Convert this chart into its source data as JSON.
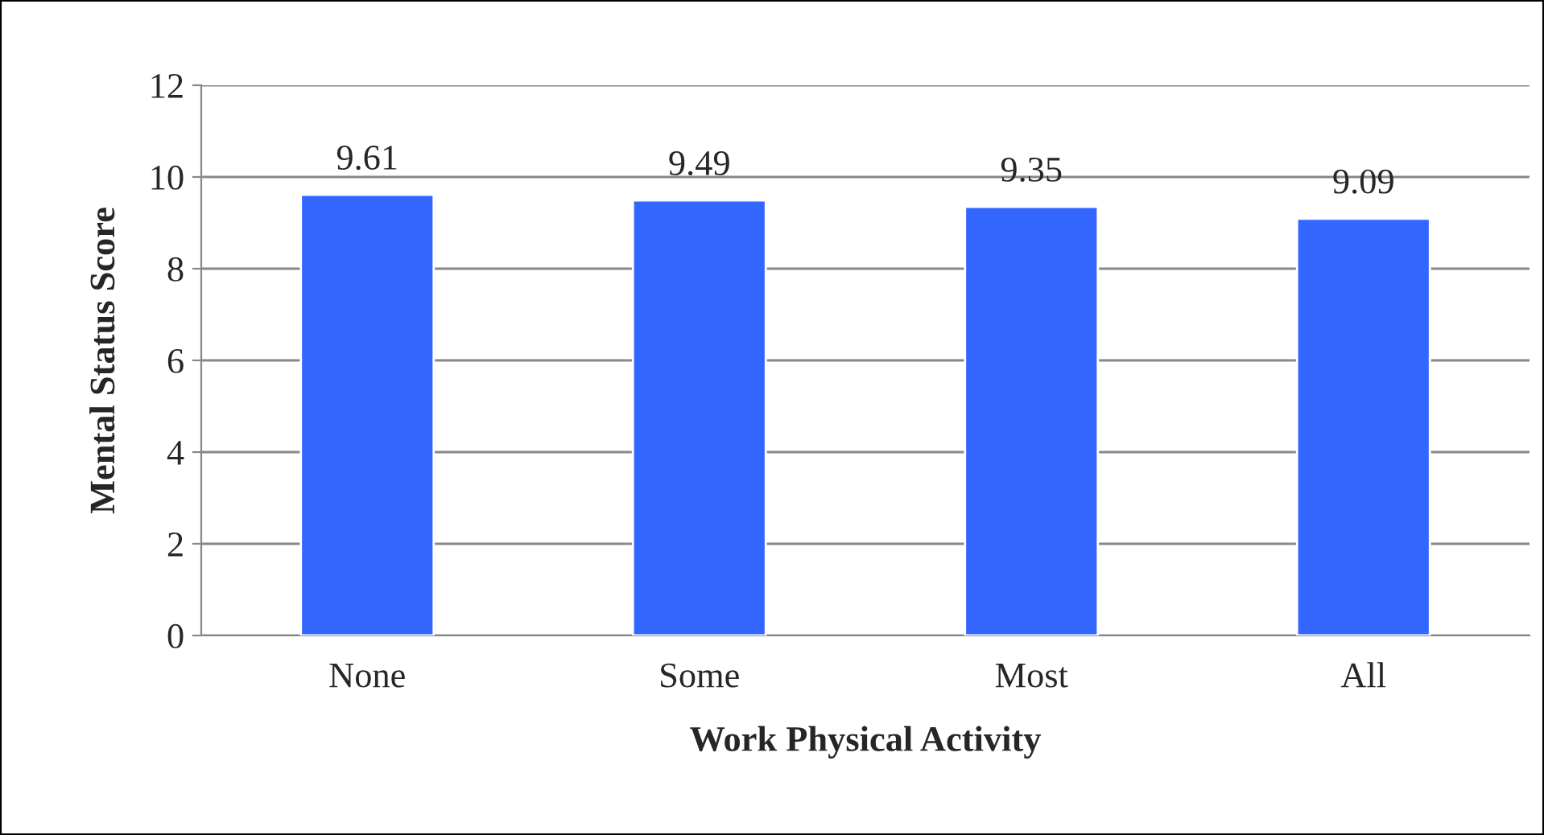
{
  "chart_data": {
    "type": "bar",
    "xlabel": "Work Physical Activity",
    "ylabel": "Mental Status Score",
    "categories": [
      "None",
      "Some",
      "Most",
      "All"
    ],
    "values": [
      9.61,
      9.49,
      9.35,
      9.09
    ],
    "color": "#3366ff",
    "ylim": [
      0,
      12
    ],
    "yticks": [
      0,
      2,
      4,
      6,
      8,
      10,
      12
    ],
    "grid": "y",
    "data_labels": true
  }
}
